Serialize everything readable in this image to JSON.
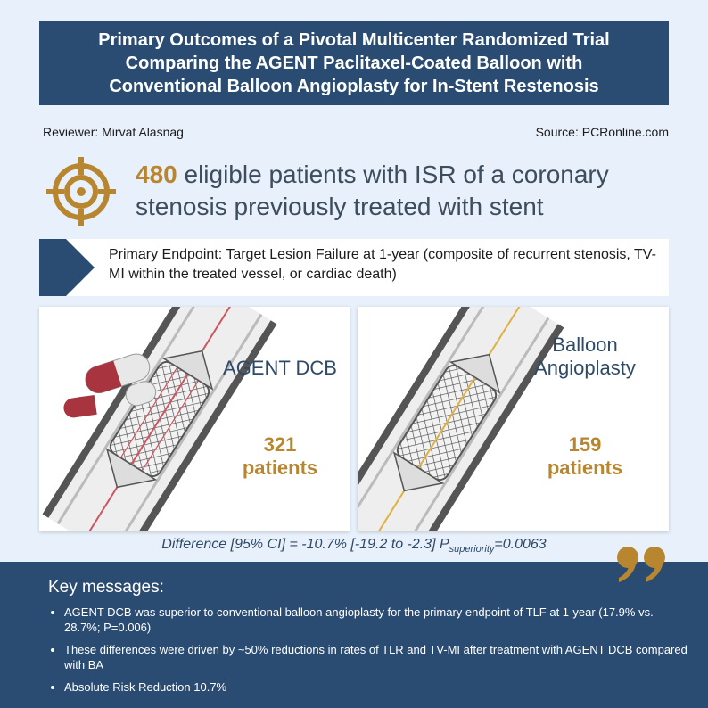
{
  "title": {
    "line1": "Primary Outcomes of a Pivotal Multicenter Randomized Trial",
    "line2": "Comparing the AGENT Paclitaxel-Coated Balloon with",
    "line3": "Conventional Balloon Angioplasty for In-Stent Restenosis"
  },
  "meta": {
    "reviewer": "Reviewer: Mirvat Alasnag",
    "source": "Source: PCRonline.com"
  },
  "headline": {
    "count": "480",
    "text": " eligible patients with ISR of a coronary stenosis previously treated with stent"
  },
  "endpoint": {
    "text": "Primary Endpoint: Target Lesion Failure at 1-year (composite of recurrent stenosis, TV-MI within the treated vessel, or cardiac death)"
  },
  "arms": {
    "agent": {
      "label": "AGENT DCB",
      "count": "321",
      "unit": "patients"
    },
    "balloon": {
      "label_line1": "Balloon",
      "label_line2": "Angioplasty",
      "count": "159",
      "unit": "patients"
    }
  },
  "difference": {
    "prefix": "Difference [95% CI] = -10.7% [-19.2 to -2.3] P",
    "subscript": "superiority",
    "suffix": "=0.0063"
  },
  "key_messages": {
    "title": "Key messages:",
    "items": [
      "AGENT DCB was superior to conventional balloon angioplasty for the primary endpoint of TLF at 1-year (17.9% vs. 28.7%; P=0.006)",
      "These differences were driven by ~50% reductions in rates of TLR and TV-MI after treatment with AGENT DCB compared with BA",
      "Absolute Risk Reduction 10.7%"
    ]
  },
  "colors": {
    "navy": "#2b4c72",
    "gold": "#b8862e",
    "background": "#e8f1fb",
    "capsule_red": "#a8343f"
  }
}
